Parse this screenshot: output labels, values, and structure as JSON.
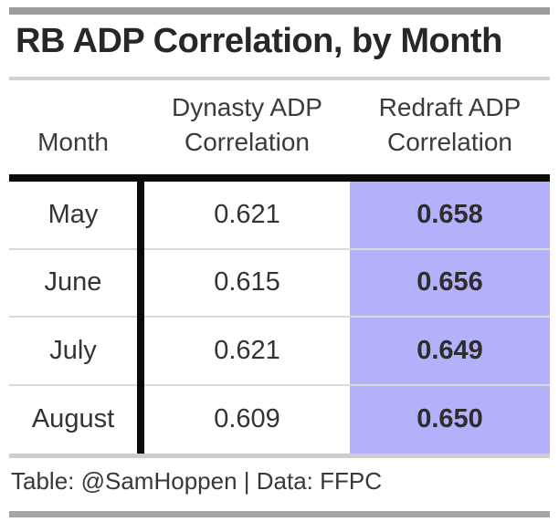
{
  "title": "RB ADP Correlation, by Month",
  "table": {
    "columns": [
      "Month",
      "Dynasty ADP Correlation",
      "Redraft ADP Correlation"
    ],
    "rows": [
      {
        "month": "May",
        "dynasty": "0.621",
        "redraft": "0.658"
      },
      {
        "month": "June",
        "dynasty": "0.615",
        "redraft": "0.656"
      },
      {
        "month": "July",
        "dynasty": "0.621",
        "redraft": "0.649"
      },
      {
        "month": "August",
        "dynasty": "0.609",
        "redraft": "0.650"
      }
    ],
    "highlight_color": "#b3b1fa"
  },
  "footer": {
    "text": "Table: @SamHoppen | Data: FFPC"
  },
  "chart_data": {
    "type": "table",
    "title": "RB ADP Correlation, by Month",
    "columns": [
      "Month",
      "Dynasty ADP Correlation",
      "Redraft ADP Correlation"
    ],
    "rows": [
      [
        "May",
        0.621,
        0.658
      ],
      [
        "June",
        0.615,
        0.656
      ],
      [
        "July",
        0.621,
        0.649
      ],
      [
        "August",
        0.609,
        0.65
      ]
    ],
    "highlighted_column": "Redraft ADP Correlation",
    "caption": "Table: @SamHoppen | Data: FFPC"
  }
}
